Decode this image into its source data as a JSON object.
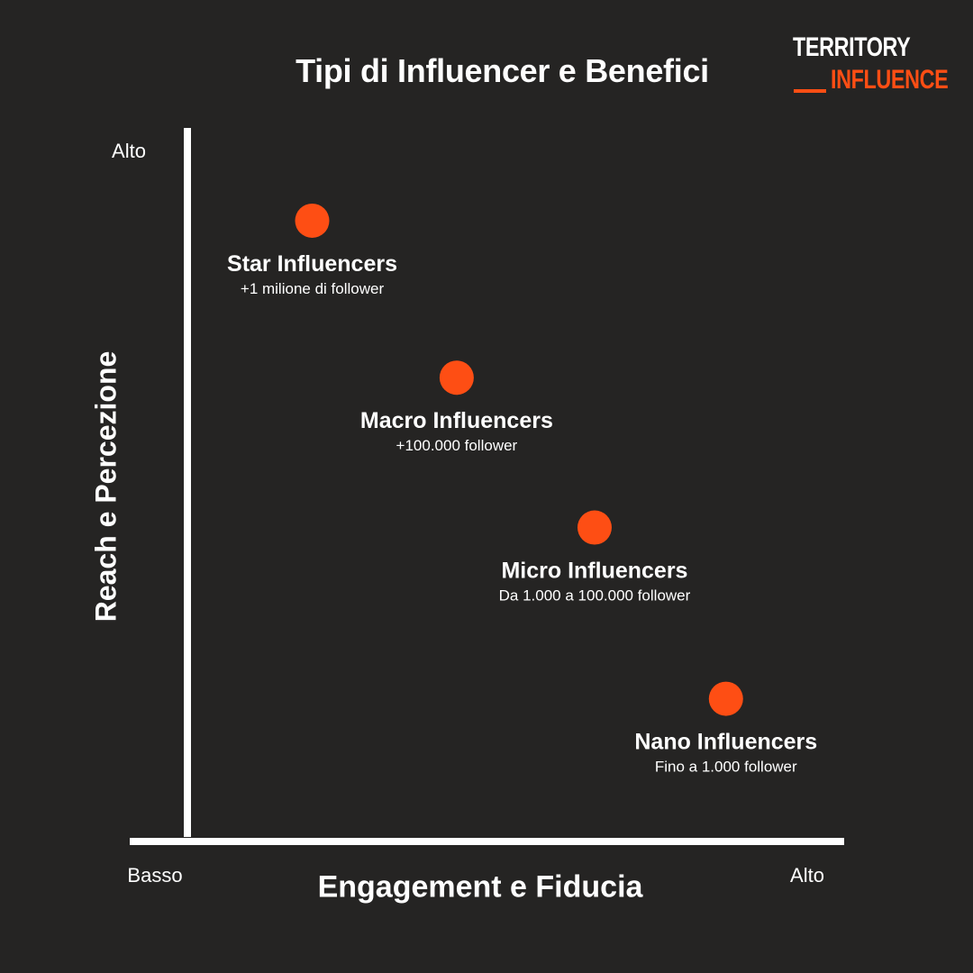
{
  "logo": {
    "line1": "TERRITORY",
    "line2": "INFLUENCE",
    "accent": "#fe4e14"
  },
  "chart_data": {
    "type": "scatter",
    "title": "Tipi di Influencer e Benefici",
    "xlabel": "Engagement e Fiducia",
    "ylabel": "Reach e Percezione",
    "x_ticks": [
      "Basso",
      "Alto"
    ],
    "y_ticks": [
      "Alto"
    ],
    "xlim": [
      0,
      100
    ],
    "ylim": [
      0,
      100
    ],
    "grid": false,
    "point_color": "#fe4e14",
    "points": [
      {
        "label": "Star Influencers",
        "sublabel": "+1 milione di follower",
        "x": 19,
        "y": 87
      },
      {
        "label": "Macro Influencers",
        "sublabel": "+100.000 follower",
        "x": 41,
        "y": 65
      },
      {
        "label": "Micro Influencers",
        "sublabel": "Da 1.000 a 100.000 follower",
        "x": 62,
        "y": 44
      },
      {
        "label": "Nano Influencers",
        "sublabel": "Fino a 1.000 follower",
        "x": 82,
        "y": 20
      }
    ]
  }
}
